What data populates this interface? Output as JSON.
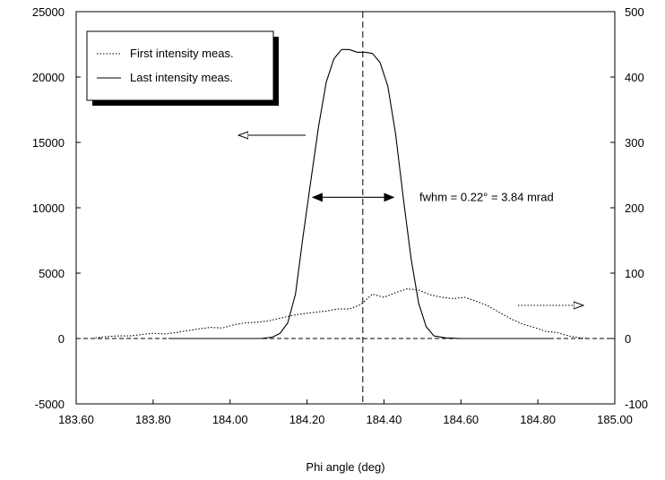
{
  "chart_data": {
    "type": "line",
    "title": "",
    "xlabel": "Phi angle (deg)",
    "ylabel": "",
    "y2label": "",
    "xlim": [
      183.6,
      185.0
    ],
    "ylim": [
      -5000,
      25000
    ],
    "y2lim": [
      -100,
      500
    ],
    "x_ticks": [
      "183.60",
      "183.80",
      "184.00",
      "184.20",
      "184.40",
      "184.60",
      "184.80",
      "185.00"
    ],
    "y_ticks": [
      "-5000",
      "0",
      "5000",
      "10000",
      "15000",
      "20000",
      "25000"
    ],
    "y2_ticks": [
      "-100",
      "0",
      "100",
      "200",
      "300",
      "400",
      "500"
    ],
    "legend_position": "top-left",
    "legend": [
      "First intensity meas.",
      "Last intensity meas."
    ],
    "series": [
      {
        "name": "First intensity meas.",
        "axis": "right",
        "style": "dotted",
        "x": [
          183.65,
          183.68,
          183.71,
          183.74,
          183.77,
          183.8,
          183.83,
          183.86,
          183.89,
          183.92,
          183.95,
          183.98,
          184.01,
          184.04,
          184.07,
          184.1,
          184.13,
          184.16,
          184.19,
          184.22,
          184.25,
          184.28,
          184.31,
          184.34,
          184.37,
          184.4,
          184.43,
          184.46,
          184.49,
          184.52,
          184.55,
          184.58,
          184.61,
          184.64,
          184.67,
          184.7,
          184.73,
          184.76,
          184.79,
          184.82,
          184.85,
          184.88,
          184.91,
          184.93
        ],
        "values": [
          1,
          3,
          4,
          4,
          6,
          8,
          7,
          9,
          12,
          15,
          17,
          16,
          21,
          24,
          25,
          27,
          31,
          35,
          38,
          40,
          42,
          45,
          45,
          52,
          68,
          63,
          70,
          76,
          74,
          67,
          63,
          61,
          63,
          57,
          50,
          40,
          30,
          22,
          17,
          11,
          9,
          4,
          1,
          0
        ]
      },
      {
        "name": "Last intensity meas.",
        "axis": "left",
        "style": "solid",
        "x": [
          183.84,
          183.9,
          183.95,
          184.0,
          184.05,
          184.08,
          184.11,
          184.13,
          184.15,
          184.17,
          184.19,
          184.21,
          184.23,
          184.25,
          184.27,
          184.29,
          184.31,
          184.33,
          184.35,
          184.37,
          184.39,
          184.41,
          184.43,
          184.45,
          184.47,
          184.49,
          184.51,
          184.53,
          184.56,
          184.6,
          184.65,
          184.7,
          184.75,
          184.8,
          184.84
        ],
        "values": [
          0,
          0,
          0,
          0,
          0,
          0,
          100,
          400,
          1200,
          3400,
          7900,
          12100,
          16200,
          19600,
          21400,
          22100,
          22100,
          21900,
          21900,
          21800,
          21100,
          19300,
          15700,
          10800,
          6200,
          2700,
          900,
          200,
          50,
          0,
          0,
          0,
          0,
          0,
          0
        ]
      }
    ],
    "annotations": {
      "fwhm_text": "fwhm = 0.22° = 3.84 mrad",
      "fwhm_range": [
        184.21,
        184.43
      ],
      "fwhm_level": 10800,
      "center_line_x": 184.345,
      "zero_line_y": 0
    }
  }
}
